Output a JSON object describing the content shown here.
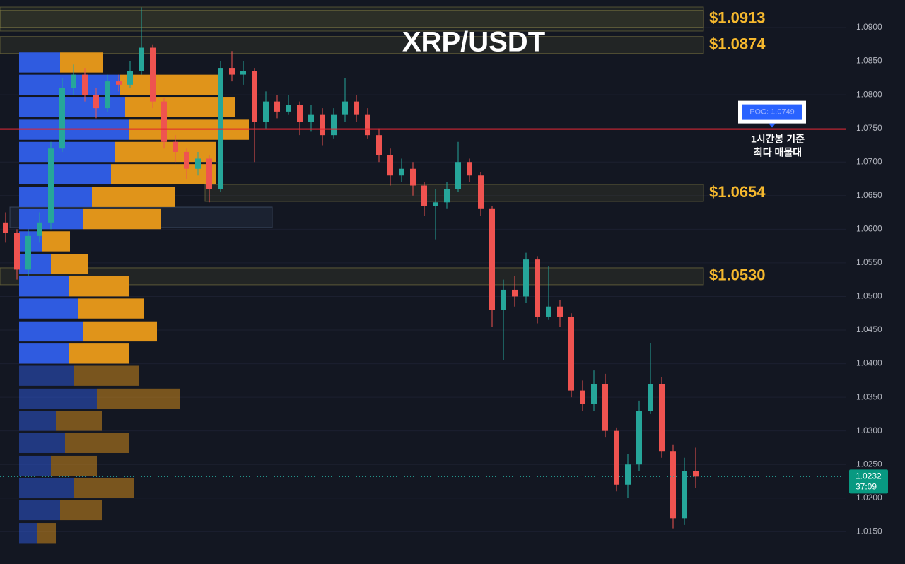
{
  "chart_data": {
    "type": "candlestick",
    "title": "XRP/USDT",
    "open": [
      1.061,
      1.0595,
      1.054,
      1.059,
      1.061,
      1.072,
      1.081,
      1.083,
      1.08,
      1.078,
      1.082,
      1.0815,
      1.0835,
      1.087,
      1.079,
      1.073,
      1.0715,
      1.069,
      1.0705,
      1.066,
      1.084,
      1.083,
      1.0835,
      1.076,
      1.079,
      1.0775,
      1.0785,
      1.076,
      1.077,
      1.074,
      1.077,
      1.079,
      1.077,
      1.074,
      1.071,
      1.068,
      1.069,
      1.0665,
      1.0635,
      1.064,
      1.066,
      1.07,
      1.068,
      1.063,
      1.048,
      1.051,
      1.05,
      1.0555,
      1.047,
      1.0485,
      1.047,
      1.036,
      1.034,
      1.037,
      1.03,
      1.022,
      1.025,
      1.033,
      1.037,
      1.027,
      1.017,
      1.024
    ],
    "high": [
      1.0625,
      1.06,
      1.06,
      1.0625,
      1.073,
      1.0825,
      1.0845,
      1.084,
      1.081,
      1.083,
      1.083,
      1.085,
      1.093,
      1.0875,
      1.0795,
      1.074,
      1.072,
      1.0715,
      1.071,
      1.085,
      1.0865,
      1.085,
      1.084,
      1.0805,
      1.08,
      1.08,
      1.079,
      1.0785,
      1.078,
      1.078,
      1.0825,
      1.08,
      1.078,
      1.075,
      1.072,
      1.0705,
      1.07,
      1.067,
      1.066,
      1.067,
      1.073,
      1.0705,
      1.0685,
      1.0635,
      1.0525,
      1.053,
      1.0565,
      1.056,
      1.0545,
      1.0495,
      1.0475,
      1.0375,
      1.039,
      1.0385,
      1.0305,
      1.0265,
      1.0345,
      1.043,
      1.038,
      1.028,
      1.026,
      1.0275
    ],
    "low": [
      1.058,
      1.0525,
      1.053,
      1.058,
      1.06,
      1.0715,
      1.08,
      1.079,
      1.0765,
      1.0775,
      1.0805,
      1.081,
      1.083,
      1.078,
      1.072,
      1.07,
      1.0675,
      1.068,
      1.064,
      1.0655,
      1.082,
      1.0815,
      1.07,
      1.075,
      1.0765,
      1.077,
      1.074,
      1.0745,
      1.0725,
      1.0735,
      1.076,
      1.076,
      1.0735,
      1.07,
      1.0665,
      1.067,
      1.065,
      1.062,
      1.0585,
      1.063,
      1.0655,
      1.067,
      1.062,
      1.0455,
      1.0405,
      1.0485,
      1.049,
      1.046,
      1.0465,
      1.0455,
      1.035,
      1.033,
      1.033,
      1.029,
      1.021,
      1.02,
      1.024,
      1.0325,
      1.026,
      1.0155,
      1.016,
      1.0215
    ],
    "close": [
      1.0595,
      1.054,
      1.059,
      1.061,
      1.072,
      1.081,
      1.083,
      1.08,
      1.078,
      1.082,
      1.0815,
      1.0835,
      1.087,
      1.079,
      1.073,
      1.0715,
      1.069,
      1.0705,
      1.066,
      1.084,
      1.083,
      1.0835,
      1.076,
      1.079,
      1.0775,
      1.0785,
      1.076,
      1.077,
      1.074,
      1.077,
      1.079,
      1.077,
      1.074,
      1.071,
      1.068,
      1.069,
      1.0665,
      1.0635,
      1.064,
      1.066,
      1.07,
      1.068,
      1.063,
      1.048,
      1.051,
      1.05,
      1.0555,
      1.047,
      1.0485,
      1.047,
      1.036,
      1.034,
      1.037,
      1.03,
      1.022,
      1.025,
      1.033,
      1.037,
      1.027,
      1.017,
      1.024,
      1.0232
    ],
    "up_color": "#26a69a",
    "down_color": "#ef5350",
    "ylim": [
      1.0102,
      1.0941
    ],
    "yticks": [
      {
        "value": 1.09,
        "label": "1.0900"
      },
      {
        "value": 1.085,
        "label": "1.0850"
      },
      {
        "value": 1.08,
        "label": "1.0800"
      },
      {
        "value": 1.075,
        "label": "1.0750"
      },
      {
        "value": 1.07,
        "label": "1.0700"
      },
      {
        "value": 1.065,
        "label": "1.0650"
      },
      {
        "value": 1.06,
        "label": "1.0600"
      },
      {
        "value": 1.055,
        "label": "1.0550"
      },
      {
        "value": 1.05,
        "label": "1.0500"
      },
      {
        "value": 1.045,
        "label": "1.0450"
      },
      {
        "value": 1.04,
        "label": "1.0400"
      },
      {
        "value": 1.035,
        "label": "1.0350"
      },
      {
        "value": 1.03,
        "label": "1.0300"
      },
      {
        "value": 1.025,
        "label": "1.0250"
      },
      {
        "value": 1.02,
        "label": "1.0200"
      },
      {
        "value": 1.015,
        "label": "1.0150"
      }
    ],
    "levels": [
      {
        "value": 1.0913,
        "label": "$1.0913"
      },
      {
        "value": 1.0874,
        "label": "$1.0874"
      },
      {
        "value": 1.0654,
        "label": "$1.0654"
      },
      {
        "value": 1.053,
        "label": "$1.0530"
      }
    ],
    "poc": {
      "value": 1.0749,
      "label": "POC: 1.0749"
    },
    "annotation": [
      "1시간봉 기준",
      "최다 매물대"
    ],
    "current_price": 1.0232,
    "countdown": "37:09",
    "volume_profile": {
      "levels": [
        1.0848,
        1.0815,
        1.0782,
        1.0748,
        1.0715,
        1.0682,
        1.0648,
        1.0615,
        1.0582,
        1.0548,
        1.0515,
        1.0482,
        1.0448,
        1.0415,
        1.0382,
        1.0348,
        1.0315,
        1.0282,
        1.0248,
        1.0215,
        1.0182,
        1.0148
      ],
      "buy": [
        58,
        143,
        150,
        156,
        136,
        130,
        103,
        91,
        33,
        45,
        71,
        84,
        91,
        71,
        78,
        110,
        52,
        65,
        45,
        78,
        58,
        26
      ],
      "sell": [
        60,
        140,
        155,
        169,
        142,
        148,
        118,
        110,
        39,
        53,
        85,
        92,
        104,
        85,
        91,
        118,
        65,
        91,
        65,
        85,
        59,
        26
      ],
      "buy_color": "#2f5be0",
      "sell_color": "#e0941a"
    }
  }
}
